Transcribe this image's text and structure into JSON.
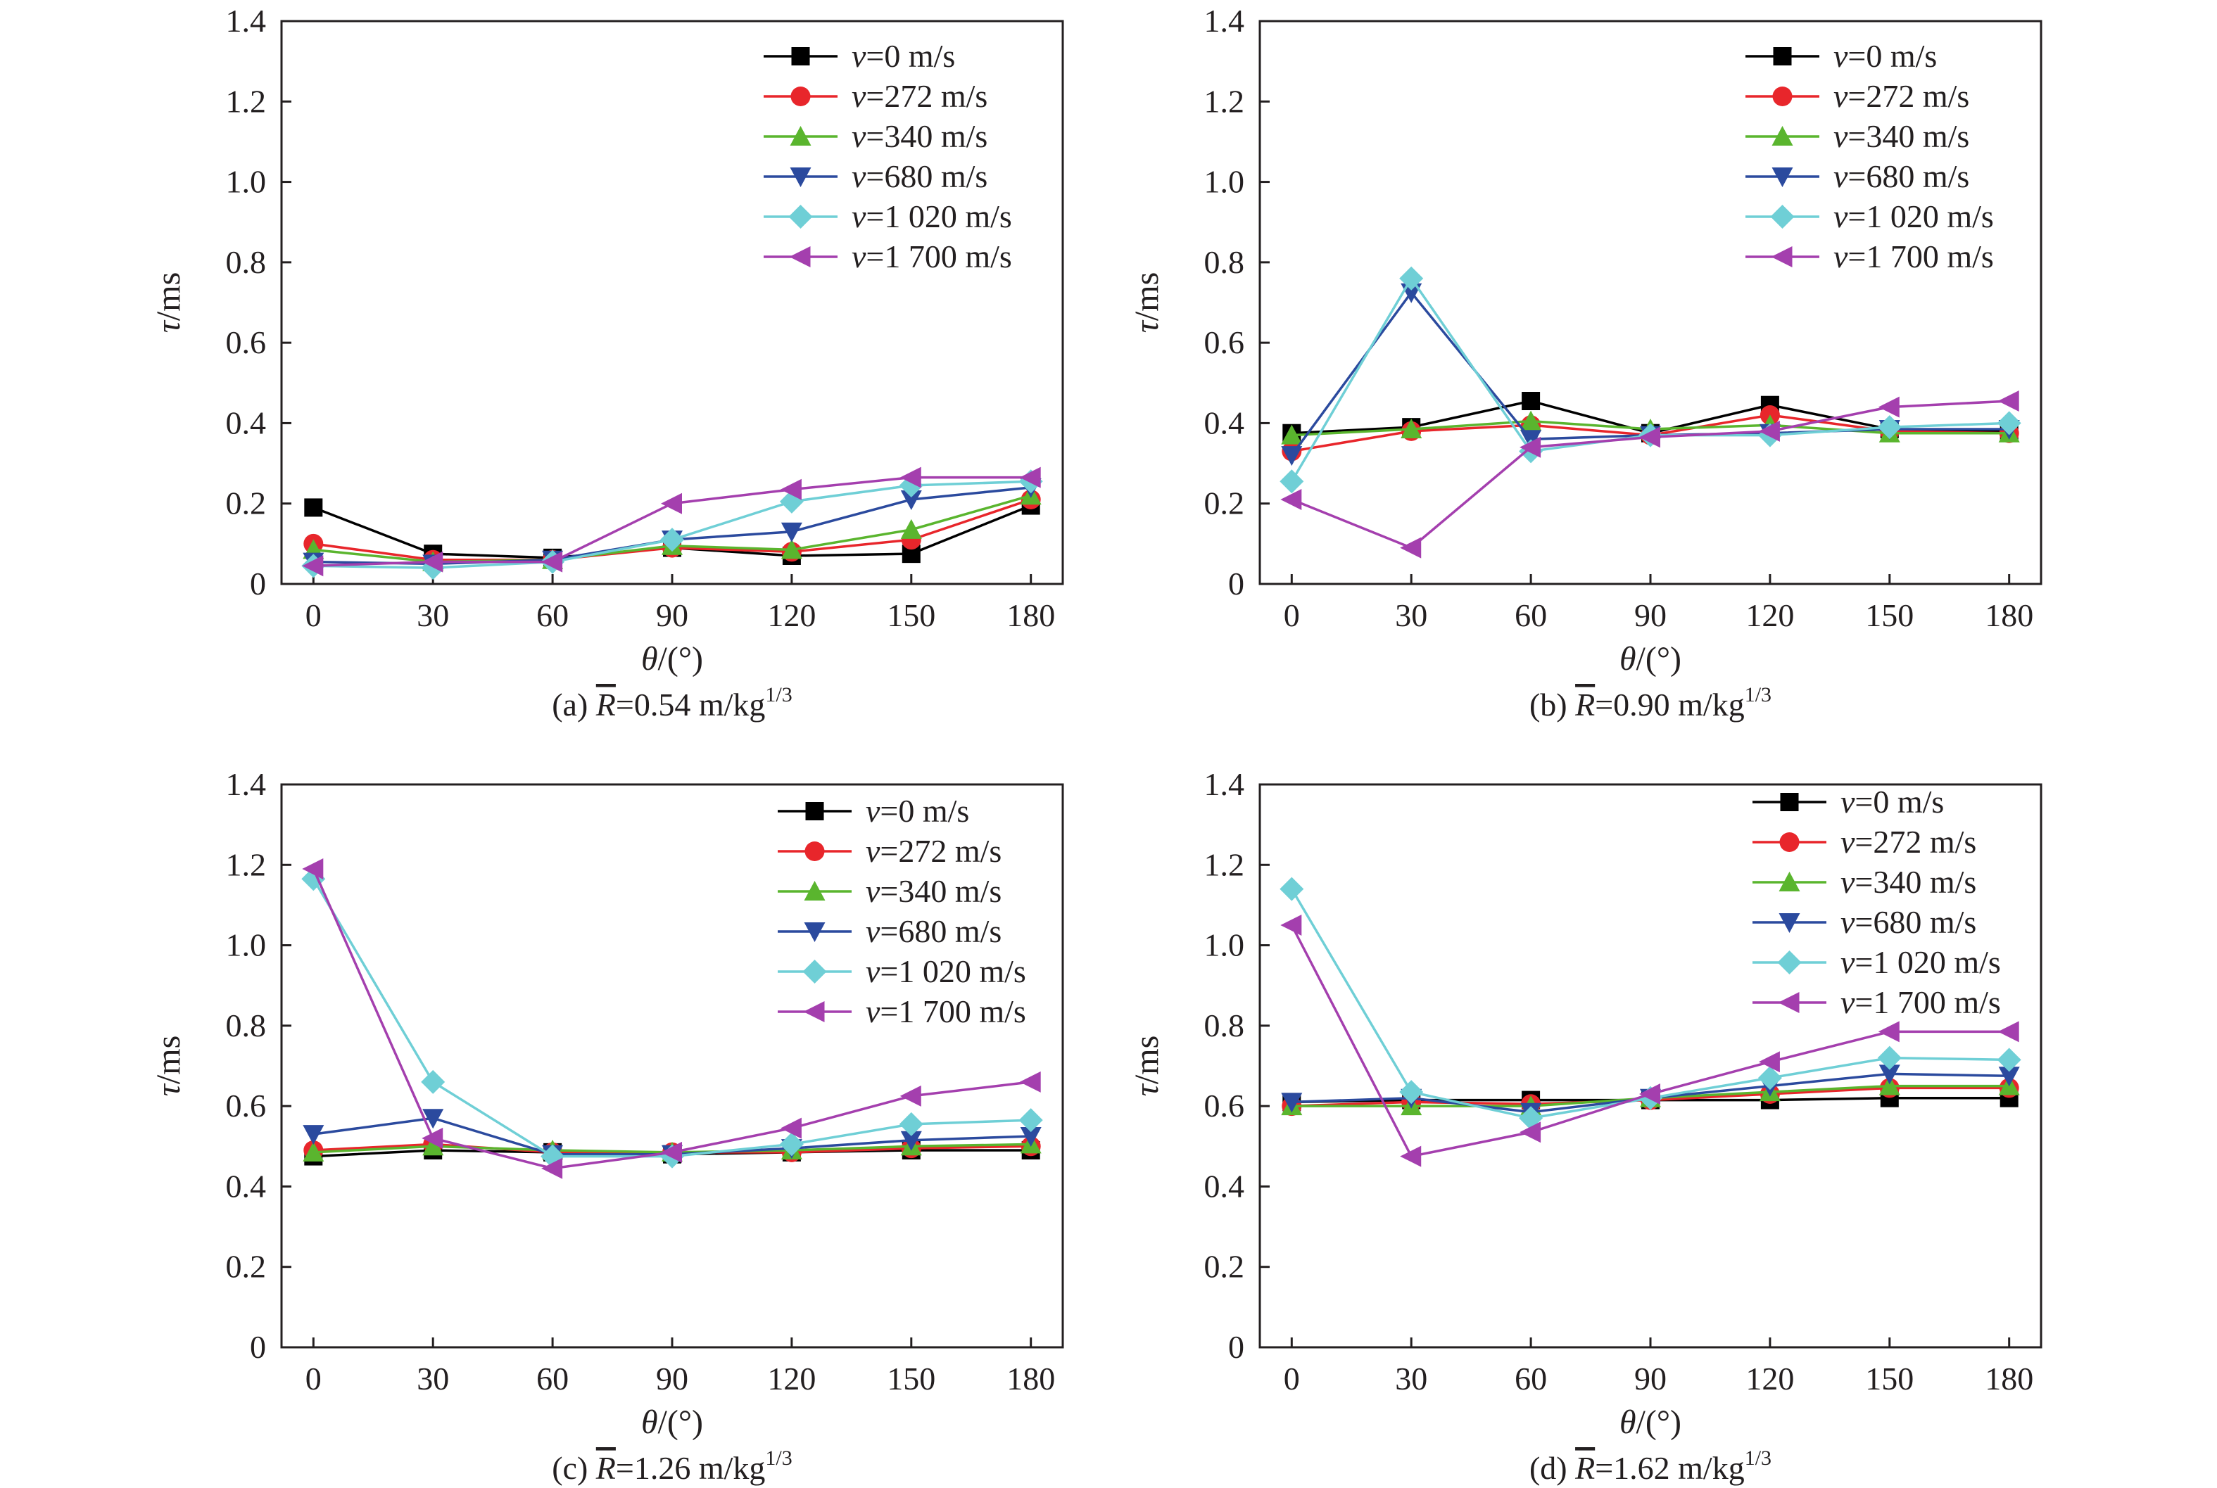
{
  "figure": {
    "background": "#ffffff",
    "axis_color": "#231f20"
  },
  "chart_data": [
    {
      "type": "line",
      "panel": "a",
      "caption": {
        "prefix": "(a) ",
        "var": "R",
        "rest": "=0.54 m/kg",
        "sup": "1/3"
      },
      "xlabel": {
        "var": "θ",
        "rest": "/(°)"
      },
      "ylabel": {
        "var": "τ",
        "rest": "/ms"
      },
      "xlim": [
        -8,
        188
      ],
      "ylim": [
        0,
        1.4
      ],
      "xticks": [
        "0",
        "30",
        "60",
        "90",
        "120",
        "150",
        "180"
      ],
      "yticks": [
        "0",
        "0.2",
        "0.4",
        "0.6",
        "0.8",
        "1.0",
        "1.2",
        "1.4"
      ],
      "x": [
        0,
        30,
        60,
        90,
        120,
        150,
        180
      ],
      "legend_position": "top-right",
      "series": [
        {
          "name": "=0 m/s",
          "color": "#000000",
          "marker": "square",
          "values": [
            0.19,
            0.075,
            0.065,
            0.09,
            0.07,
            0.075,
            0.195
          ]
        },
        {
          "name": "=272 m/s",
          "color": "#e8262b",
          "marker": "circle",
          "values": [
            0.1,
            0.06,
            0.06,
            0.09,
            0.08,
            0.11,
            0.21
          ]
        },
        {
          "name": "=340 m/s",
          "color": "#5ab52e",
          "marker": "triangle-up",
          "values": [
            0.085,
            0.055,
            0.06,
            0.095,
            0.085,
            0.135,
            0.22
          ]
        },
        {
          "name": "=680 m/s",
          "color": "#2b4a9e",
          "marker": "triangle-down",
          "values": [
            0.055,
            0.05,
            0.06,
            0.11,
            0.13,
            0.21,
            0.24
          ]
        },
        {
          "name": "=1 020 m/s",
          "color": "#6fcfd6",
          "marker": "diamond",
          "values": [
            0.045,
            0.04,
            0.055,
            0.11,
            0.205,
            0.245,
            0.255
          ]
        },
        {
          "name": "=1 700 m/s",
          "color": "#a43fae",
          "marker": "triangle-left",
          "values": [
            0.045,
            0.055,
            0.055,
            0.2,
            0.235,
            0.265,
            0.265
          ]
        }
      ]
    },
    {
      "type": "line",
      "panel": "b",
      "caption": {
        "prefix": "(b) ",
        "var": "R",
        "rest": "=0.90 m/kg",
        "sup": "1/3"
      },
      "xlabel": {
        "var": "θ",
        "rest": "/(°)"
      },
      "ylabel": {
        "var": "τ",
        "rest": "/ms"
      },
      "xlim": [
        -8,
        188
      ],
      "ylim": [
        0,
        1.4
      ],
      "xticks": [
        "0",
        "30",
        "60",
        "90",
        "120",
        "150",
        "180"
      ],
      "yticks": [
        "0",
        "0.2",
        "0.4",
        "0.6",
        "0.8",
        "1.0",
        "1.2",
        "1.4"
      ],
      "x": [
        0,
        30,
        60,
        90,
        120,
        150,
        180
      ],
      "legend_position": "top-right",
      "series": [
        {
          "name": "=0 m/s",
          "color": "#000000",
          "marker": "square",
          "values": [
            0.375,
            0.39,
            0.455,
            0.375,
            0.445,
            0.385,
            0.38
          ]
        },
        {
          "name": "=272 m/s",
          "color": "#e8262b",
          "marker": "circle",
          "values": [
            0.33,
            0.38,
            0.395,
            0.37,
            0.42,
            0.38,
            0.375
          ]
        },
        {
          "name": "=340 m/s",
          "color": "#5ab52e",
          "marker": "triangle-up",
          "values": [
            0.37,
            0.385,
            0.405,
            0.385,
            0.395,
            0.375,
            0.375
          ]
        },
        {
          "name": "=680 m/s",
          "color": "#2b4a9e",
          "marker": "triangle-down",
          "values": [
            0.32,
            0.725,
            0.36,
            0.37,
            0.375,
            0.385,
            0.385
          ]
        },
        {
          "name": "=1 020 m/s",
          "color": "#6fcfd6",
          "marker": "diamond",
          "values": [
            0.255,
            0.76,
            0.33,
            0.37,
            0.37,
            0.39,
            0.4
          ]
        },
        {
          "name": "=1 700 m/s",
          "color": "#a43fae",
          "marker": "triangle-left",
          "values": [
            0.21,
            0.09,
            0.34,
            0.365,
            0.38,
            0.44,
            0.455
          ]
        }
      ]
    },
    {
      "type": "line",
      "panel": "c",
      "caption": {
        "prefix": "(c) ",
        "var": "R",
        "rest": "=1.26 m/kg",
        "sup": "1/3"
      },
      "xlabel": {
        "var": "θ",
        "rest": "/(°)"
      },
      "ylabel": {
        "var": "τ",
        "rest": "/ms"
      },
      "xlim": [
        -8,
        188
      ],
      "ylim": [
        0,
        1.4
      ],
      "xticks": [
        "0",
        "30",
        "60",
        "90",
        "120",
        "150",
        "180"
      ],
      "yticks": [
        "0",
        "0.2",
        "0.4",
        "0.6",
        "0.8",
        "1.0",
        "1.2",
        "1.4"
      ],
      "x": [
        0,
        30,
        60,
        90,
        120,
        150,
        180
      ],
      "legend_position": "top-right",
      "series": [
        {
          "name": "=0 m/s",
          "color": "#000000",
          "marker": "square",
          "values": [
            0.475,
            0.49,
            0.485,
            0.48,
            0.485,
            0.49,
            0.49
          ]
        },
        {
          "name": "=272 m/s",
          "color": "#e8262b",
          "marker": "circle",
          "values": [
            0.49,
            0.505,
            0.485,
            0.485,
            0.485,
            0.495,
            0.5
          ]
        },
        {
          "name": "=340 m/s",
          "color": "#5ab52e",
          "marker": "triangle-up",
          "values": [
            0.485,
            0.5,
            0.49,
            0.485,
            0.49,
            0.5,
            0.505
          ]
        },
        {
          "name": "=680 m/s",
          "color": "#2b4a9e",
          "marker": "triangle-down",
          "values": [
            0.53,
            0.57,
            0.48,
            0.48,
            0.495,
            0.515,
            0.525
          ]
        },
        {
          "name": "=1 020 m/s",
          "color": "#6fcfd6",
          "marker": "diamond",
          "values": [
            1.165,
            0.66,
            0.475,
            0.475,
            0.505,
            0.555,
            0.565
          ]
        },
        {
          "name": "=1 700 m/s",
          "color": "#a43fae",
          "marker": "triangle-left",
          "values": [
            1.19,
            0.52,
            0.445,
            0.485,
            0.545,
            0.625,
            0.66
          ]
        }
      ]
    },
    {
      "type": "line",
      "panel": "d",
      "caption": {
        "prefix": "(d) ",
        "var": "R",
        "rest": "=1.62 m/kg",
        "sup": "1/3"
      },
      "xlabel": {
        "var": "θ",
        "rest": "/(°)"
      },
      "ylabel": {
        "var": "τ",
        "rest": "/ms"
      },
      "xlim": [
        -8,
        188
      ],
      "ylim": [
        0,
        1.4
      ],
      "xticks": [
        "0",
        "30",
        "60",
        "90",
        "120",
        "150",
        "180"
      ],
      "yticks": [
        "0",
        "0.2",
        "0.4",
        "0.6",
        "0.8",
        "1.0",
        "1.2",
        "1.4"
      ],
      "x": [
        0,
        30,
        60,
        90,
        120,
        150,
        180
      ],
      "legend_position": "top-right",
      "series": [
        {
          "name": "=0 m/s",
          "color": "#000000",
          "marker": "square",
          "values": [
            0.61,
            0.615,
            0.615,
            0.615,
            0.615,
            0.62,
            0.62
          ]
        },
        {
          "name": "=272 m/s",
          "color": "#e8262b",
          "marker": "circle",
          "values": [
            0.6,
            0.61,
            0.605,
            0.615,
            0.63,
            0.645,
            0.645
          ]
        },
        {
          "name": "=340 m/s",
          "color": "#5ab52e",
          "marker": "triangle-up",
          "values": [
            0.6,
            0.6,
            0.6,
            0.62,
            0.635,
            0.65,
            0.65
          ]
        },
        {
          "name": "=680 m/s",
          "color": "#2b4a9e",
          "marker": "triangle-down",
          "values": [
            0.61,
            0.62,
            0.585,
            0.62,
            0.65,
            0.68,
            0.675
          ]
        },
        {
          "name": "=1 020 m/s",
          "color": "#6fcfd6",
          "marker": "diamond",
          "values": [
            1.14,
            0.635,
            0.57,
            0.62,
            0.67,
            0.72,
            0.715
          ]
        },
        {
          "name": "=1 700 m/s",
          "color": "#a43fae",
          "marker": "triangle-left",
          "values": [
            1.05,
            0.475,
            0.535,
            0.63,
            0.71,
            0.785,
            0.785
          ]
        }
      ]
    }
  ]
}
